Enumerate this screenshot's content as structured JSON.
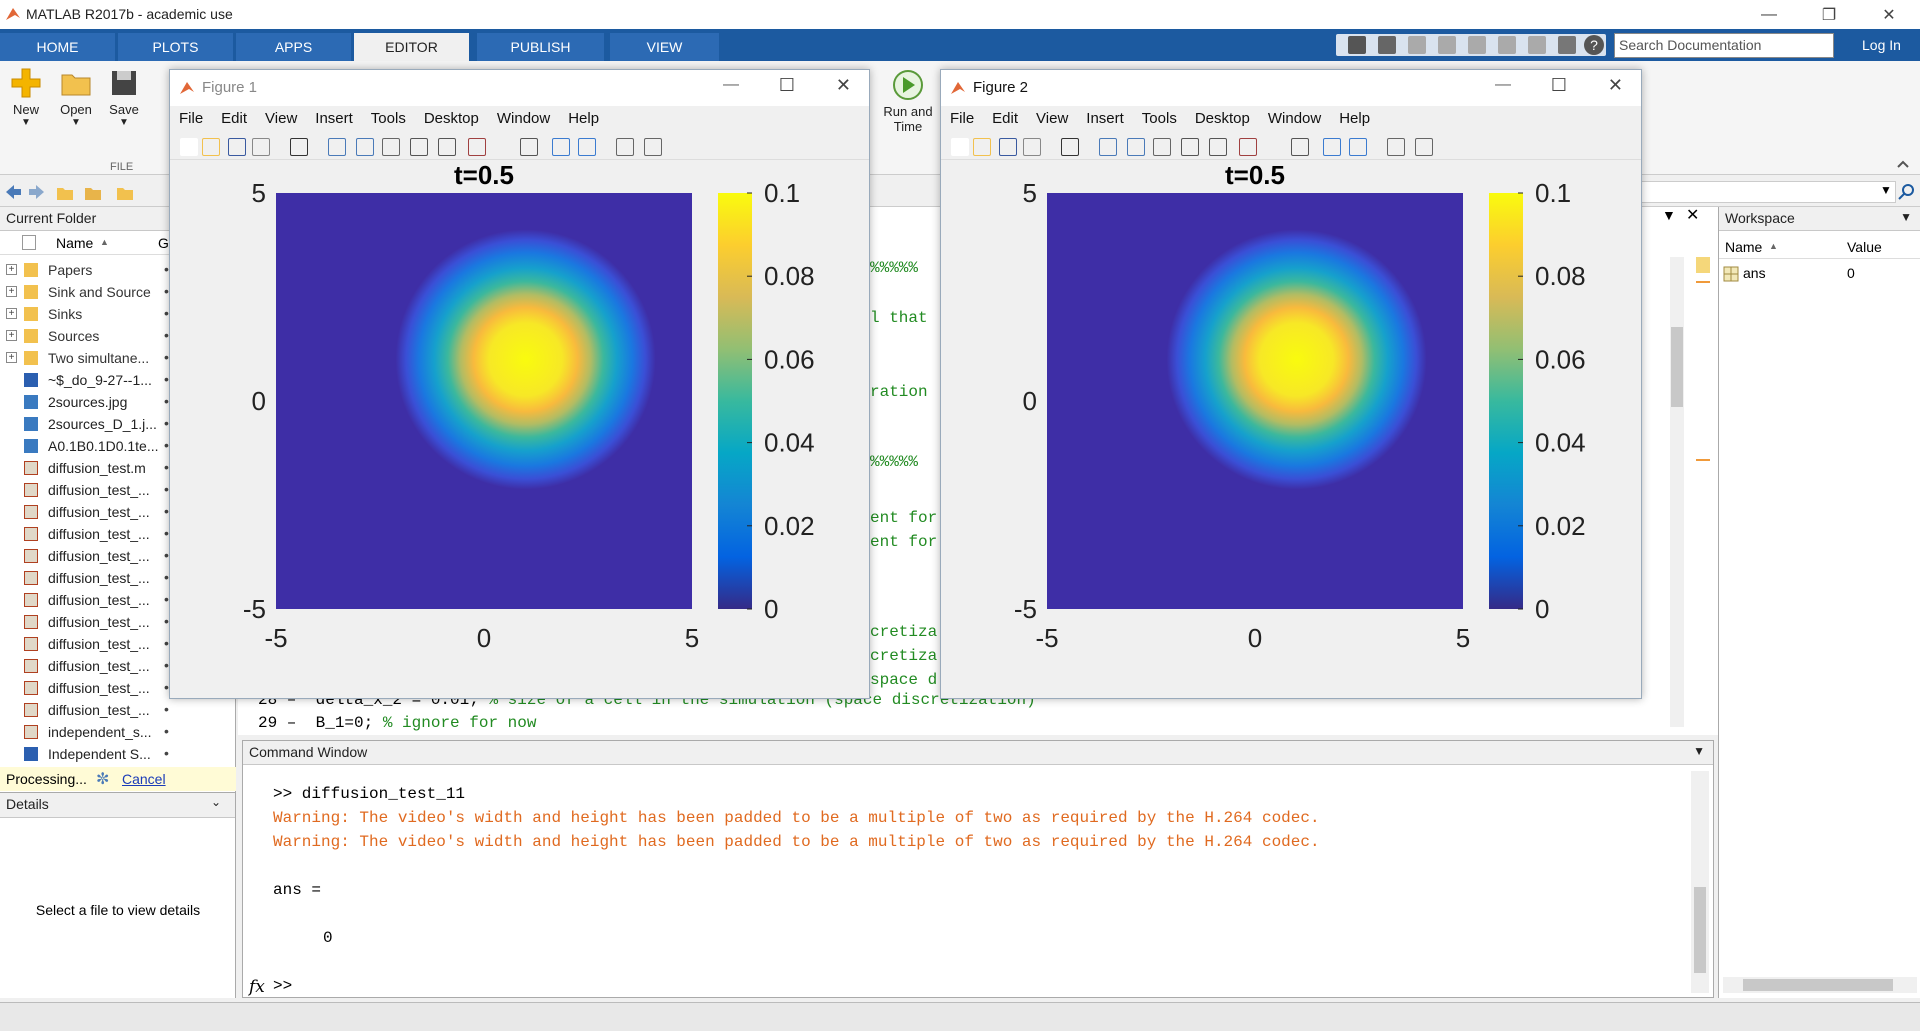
{
  "app": {
    "title": "MATLAB R2017b - academic use"
  },
  "ribbon": {
    "tabs": [
      "HOME",
      "PLOTS",
      "APPS",
      "EDITOR",
      "PUBLISH",
      "VIEW"
    ],
    "active_tab": "EDITOR",
    "search_placeholder": "Search Documentation",
    "login": "Log In",
    "buttons": {
      "new": "New",
      "open": "Open",
      "save": "Save",
      "run_and_time_1": "Run and",
      "run_and_time_2": "Time"
    },
    "section_file": "FILE"
  },
  "current_folder": {
    "title": "Current Folder",
    "col_name": "Name",
    "col_g": "G",
    "items": [
      {
        "name": "Papers",
        "kind": "folder"
      },
      {
        "name": "Sink and Source",
        "kind": "folder"
      },
      {
        "name": "Sinks",
        "kind": "folder"
      },
      {
        "name": "Sources",
        "kind": "folder"
      },
      {
        "name": "Two simultane...",
        "kind": "folder"
      },
      {
        "name": "~$_do_9-27--1...",
        "kind": "doc"
      },
      {
        "name": "2sources.jpg",
        "kind": "img"
      },
      {
        "name": "2sources_D_1.j...",
        "kind": "img"
      },
      {
        "name": "A0.1B0.1D0.1te...",
        "kind": "img"
      },
      {
        "name": "diffusion_test.m",
        "kind": "m"
      },
      {
        "name": "diffusion_test_...",
        "kind": "m"
      },
      {
        "name": "diffusion_test_...",
        "kind": "m"
      },
      {
        "name": "diffusion_test_...",
        "kind": "m"
      },
      {
        "name": "diffusion_test_...",
        "kind": "m"
      },
      {
        "name": "diffusion_test_...",
        "kind": "m"
      },
      {
        "name": "diffusion_test_...",
        "kind": "m"
      },
      {
        "name": "diffusion_test_...",
        "kind": "m"
      },
      {
        "name": "diffusion_test_...",
        "kind": "m"
      },
      {
        "name": "diffusion_test_...",
        "kind": "m"
      },
      {
        "name": "diffusion_test_...",
        "kind": "m"
      },
      {
        "name": "diffusion_test_...",
        "kind": "m"
      },
      {
        "name": "independent_s...",
        "kind": "m"
      },
      {
        "name": "Independent S...",
        "kind": "doc"
      }
    ],
    "processing": "Processing...",
    "cancel": "Cancel"
  },
  "details": {
    "title": "Details",
    "empty": "Select a file to view details"
  },
  "editor": {
    "fragments": [
      "%%%%%",
      "l that",
      "ration",
      "%%%%%",
      "ent for",
      "ent for",
      "cretiza",
      "cretiza",
      "space d"
    ],
    "lines": [
      {
        "num": "28",
        "code": "delta_x_2 = 0.01; ",
        "comment": "% size of a cell in the simulation (space discretization)"
      },
      {
        "num": "29",
        "code": "B_1=0; ",
        "comment": "% ignore for now"
      }
    ]
  },
  "command_window": {
    "title": "Command Window",
    "prompt_cmd": ">> diffusion_test_11",
    "warnings": [
      "Warning: The video's width and height has been padded to be a multiple of two as required by the H.264 codec.",
      "Warning: The video's width and height has been padded to be a multiple of two as required by the H.264 codec."
    ],
    "ans_label": "ans =",
    "ans_value": "0",
    "fx": "fx",
    "prompt": ">>"
  },
  "workspace": {
    "title": "Workspace",
    "col_name": "Name",
    "col_value": "Value",
    "vars": [
      {
        "name": "ans",
        "value": "0"
      }
    ]
  },
  "figure_menu": [
    "File",
    "Edit",
    "View",
    "Insert",
    "Tools",
    "Desktop",
    "Window",
    "Help"
  ],
  "figures": [
    {
      "window_title": "Figure 1"
    },
    {
      "window_title": "Figure 2"
    }
  ],
  "chart_data": [
    {
      "type": "heatmap",
      "title": "t=0.5",
      "x_ticks": [
        "-5",
        "0",
        "5"
      ],
      "y_ticks": [
        "5",
        "0",
        "-5"
      ],
      "xlim": [
        -5,
        5
      ],
      "ylim": [
        -5,
        5
      ],
      "colorbar_ticks": [
        "0.1",
        "0.08",
        "0.06",
        "0.04",
        "0.02",
        "0"
      ],
      "clim": [
        0,
        0.1
      ],
      "colormap": "parula",
      "peak": {
        "x": 1,
        "y": 1,
        "value": 0.1
      }
    },
    {
      "type": "heatmap",
      "title": "t=0.5",
      "x_ticks": [
        "-5",
        "0",
        "5"
      ],
      "y_ticks": [
        "5",
        "0",
        "-5"
      ],
      "xlim": [
        -5,
        5
      ],
      "ylim": [
        -5,
        5
      ],
      "colorbar_ticks": [
        "0.1",
        "0.08",
        "0.06",
        "0.04",
        "0.02",
        "0"
      ],
      "clim": [
        0,
        0.1
      ],
      "colormap": "parula",
      "peak": {
        "x": 1,
        "y": 1,
        "value": 0.1
      }
    }
  ]
}
